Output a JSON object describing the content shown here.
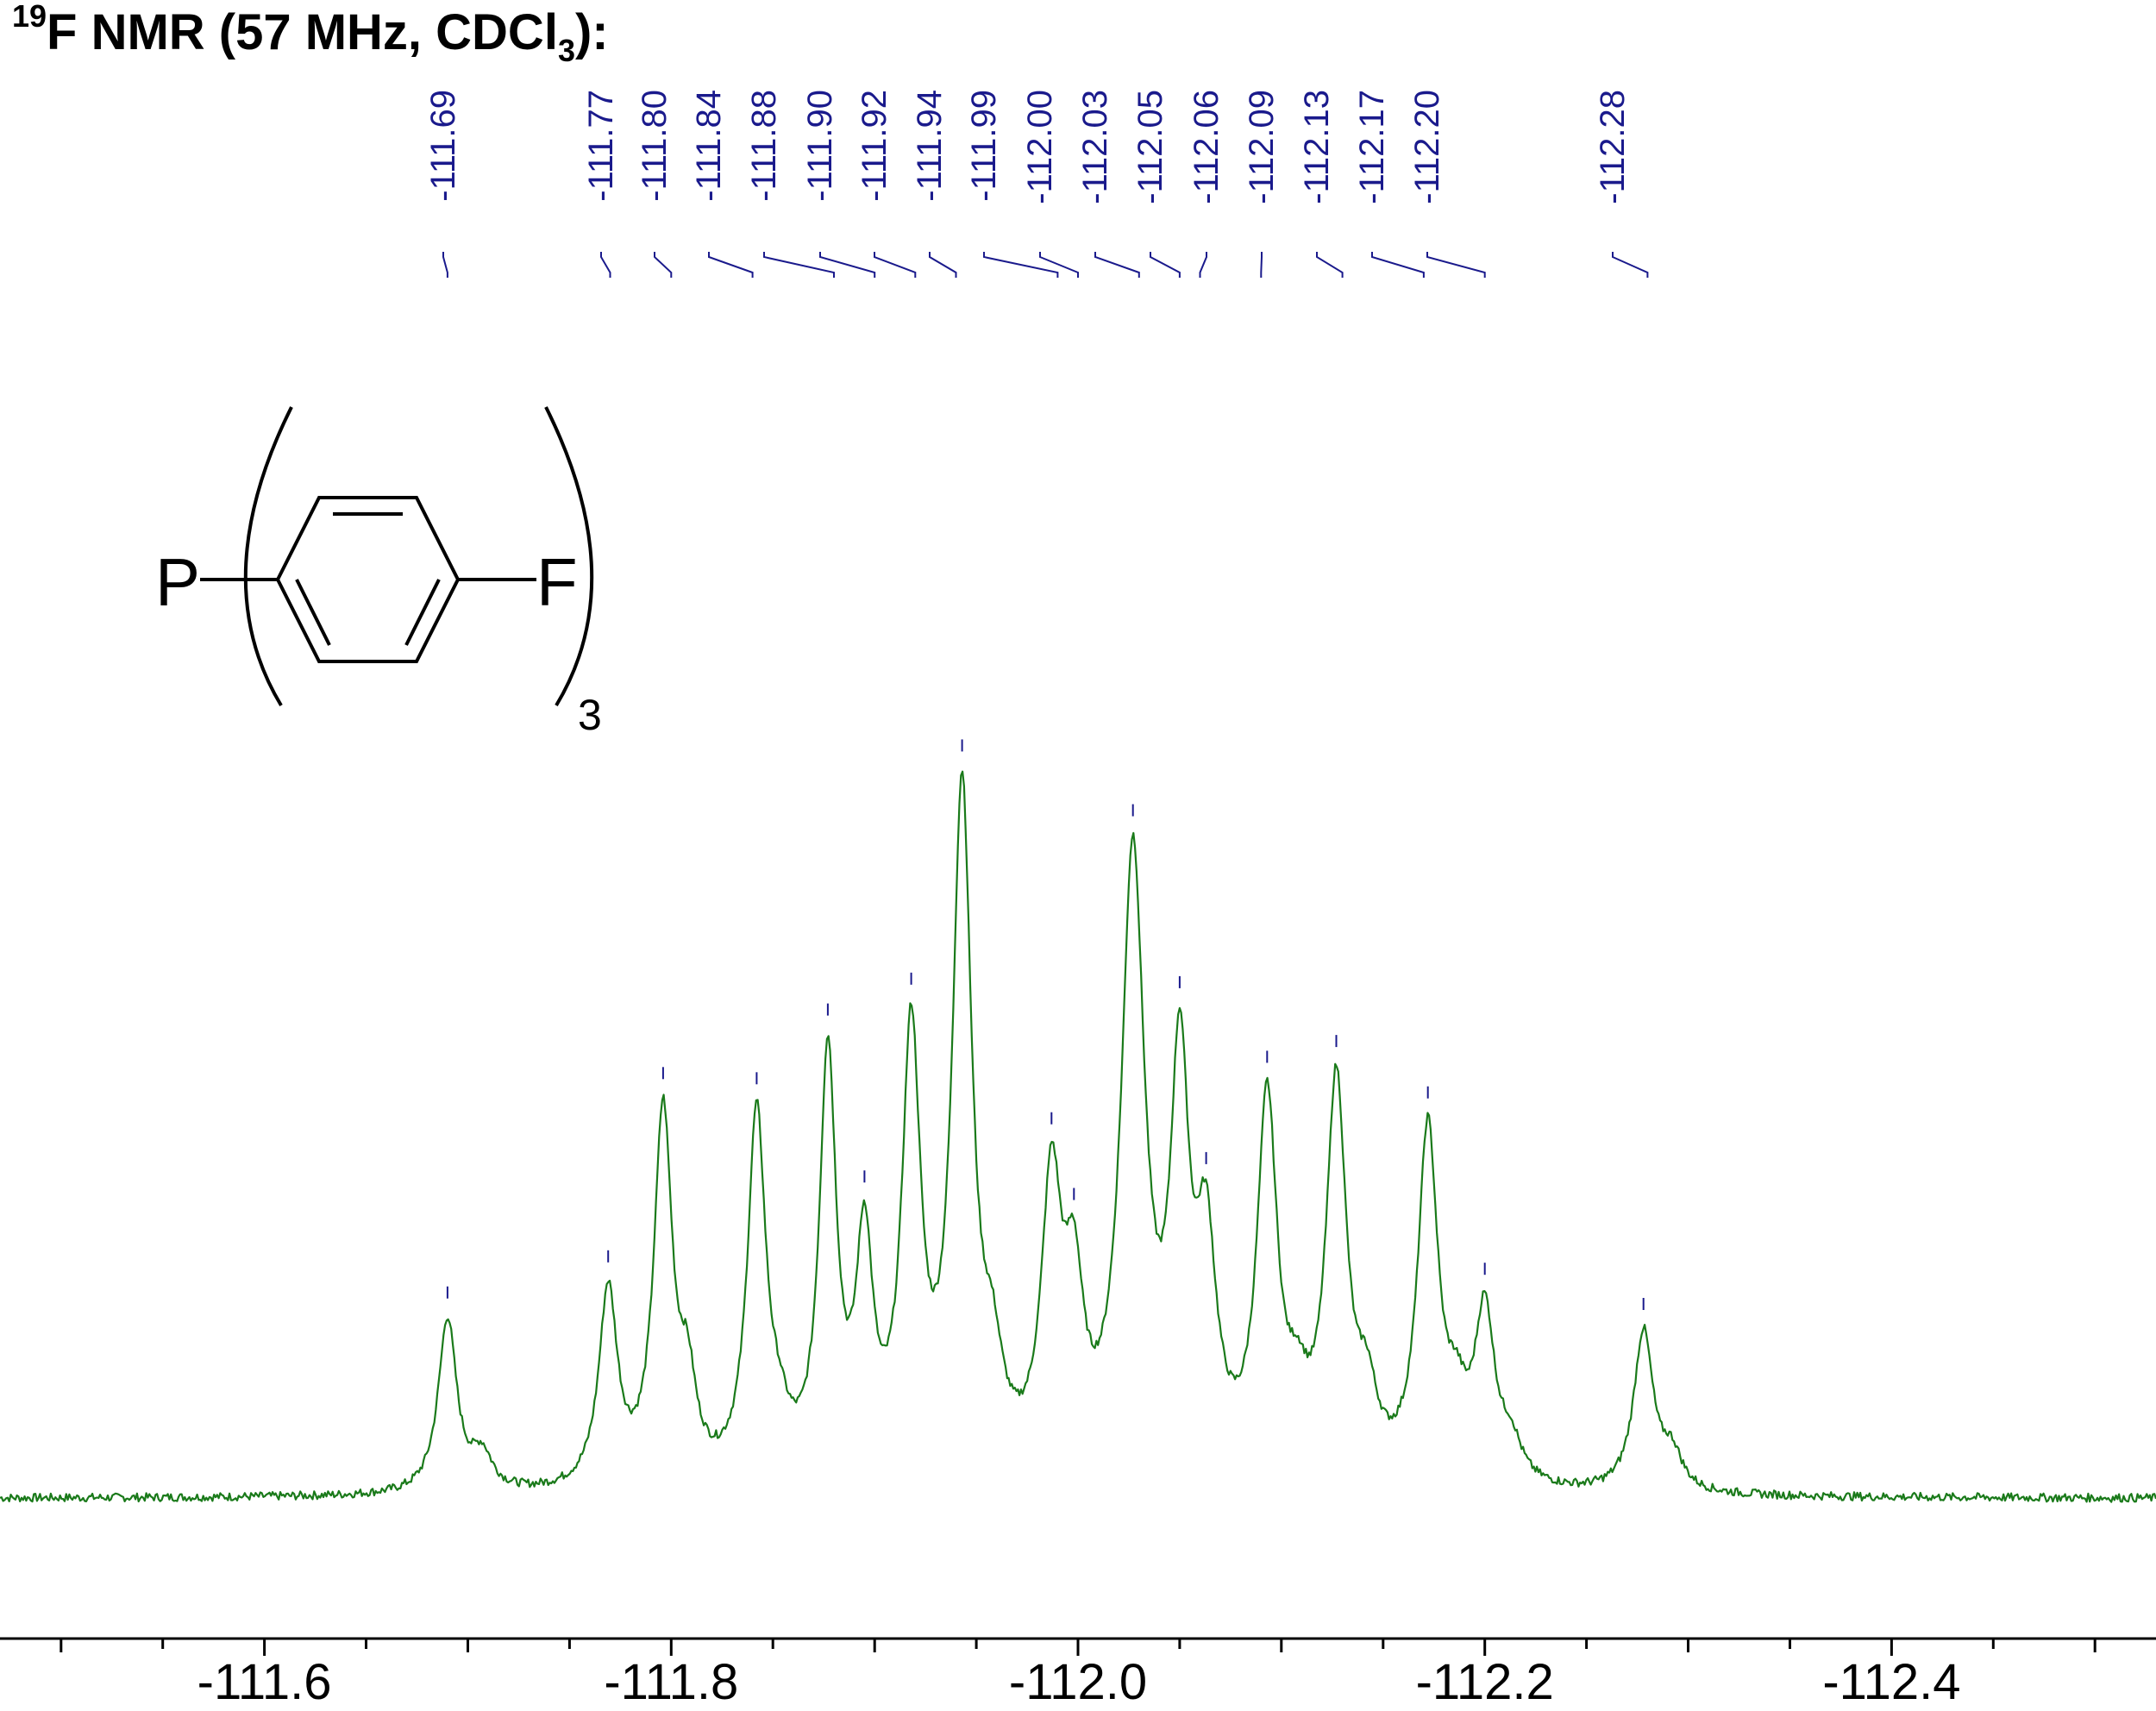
{
  "title": {
    "nucleus_mass": "19",
    "nucleus_symbol": "F NMR (57 MHz, CDCl",
    "solvent_subscript": "3",
    "suffix": "):"
  },
  "structure": {
    "atom_left": "P",
    "atom_right": "F",
    "multiplicity": "3"
  },
  "colors": {
    "spectrum": "#1a7a1a",
    "peak_labels": "#1a1a8c",
    "axis": "#000000"
  },
  "chart_data": {
    "type": "line",
    "title": "19F NMR (57 MHz, CDCl3):",
    "xlabel": "",
    "ylabel": "",
    "x_axis_reversed": true,
    "xlim": [
      -111.47,
      -112.53
    ],
    "x_ticks": [
      -111.6,
      -111.8,
      -112.0,
      -112.2,
      -112.4
    ],
    "x_tick_labels": [
      "-111.6",
      "-111.8",
      "-112.0",
      "-112.2",
      "-112.4"
    ],
    "x_minor_step": 0.1,
    "grid": false,
    "baseline_intensity": 0.0,
    "peak_labels": [
      "-111.69",
      "-111.77",
      "-111.80",
      "-111.84",
      "-111.88",
      "-111.90",
      "-111.92",
      "-111.94",
      "-111.99",
      "-112.00",
      "-112.03",
      "-112.05",
      "-112.06",
      "-112.09",
      "-112.13",
      "-112.17",
      "-112.20",
      "-112.28"
    ],
    "peaks": [
      {
        "ppm": -111.69,
        "height": 0.25,
        "width": 0.0055
      },
      {
        "ppm": -111.707,
        "height": 0.05,
        "width": 0.006
      },
      {
        "ppm": -111.769,
        "height": 0.28,
        "width": 0.0055
      },
      {
        "ppm": -111.796,
        "height": 0.53,
        "width": 0.0055
      },
      {
        "ppm": -111.808,
        "height": 0.12,
        "width": 0.005
      },
      {
        "ppm": -111.842,
        "height": 0.52,
        "width": 0.0055
      },
      {
        "ppm": -111.853,
        "height": 0.05,
        "width": 0.006
      },
      {
        "ppm": -111.877,
        "height": 0.6,
        "width": 0.005
      },
      {
        "ppm": -111.895,
        "height": 0.32,
        "width": 0.005
      },
      {
        "ppm": -111.918,
        "height": 0.62,
        "width": 0.0055
      },
      {
        "ppm": -111.943,
        "height": 0.97,
        "width": 0.0058
      },
      {
        "ppm": -111.958,
        "height": 0.12,
        "width": 0.006
      },
      {
        "ppm": -111.987,
        "height": 0.4,
        "width": 0.006
      },
      {
        "ppm": -111.998,
        "height": 0.23,
        "width": 0.0055
      },
      {
        "ppm": -112.027,
        "height": 0.88,
        "width": 0.007
      },
      {
        "ppm": -112.05,
        "height": 0.55,
        "width": 0.0055
      },
      {
        "ppm": -112.063,
        "height": 0.3,
        "width": 0.006
      },
      {
        "ppm": -112.093,
        "height": 0.53,
        "width": 0.006
      },
      {
        "ppm": -112.108,
        "height": 0.08,
        "width": 0.006
      },
      {
        "ppm": -112.127,
        "height": 0.56,
        "width": 0.006
      },
      {
        "ppm": -112.142,
        "height": 0.1,
        "width": 0.006
      },
      {
        "ppm": -112.172,
        "height": 0.5,
        "width": 0.006
      },
      {
        "ppm": -112.186,
        "height": 0.08,
        "width": 0.006
      },
      {
        "ppm": -112.2,
        "height": 0.24,
        "width": 0.006
      },
      {
        "ppm": -112.213,
        "height": 0.05,
        "width": 0.006
      },
      {
        "ppm": -112.278,
        "height": 0.23,
        "width": 0.0058
      },
      {
        "ppm": -112.292,
        "height": 0.05,
        "width": 0.006
      }
    ]
  }
}
